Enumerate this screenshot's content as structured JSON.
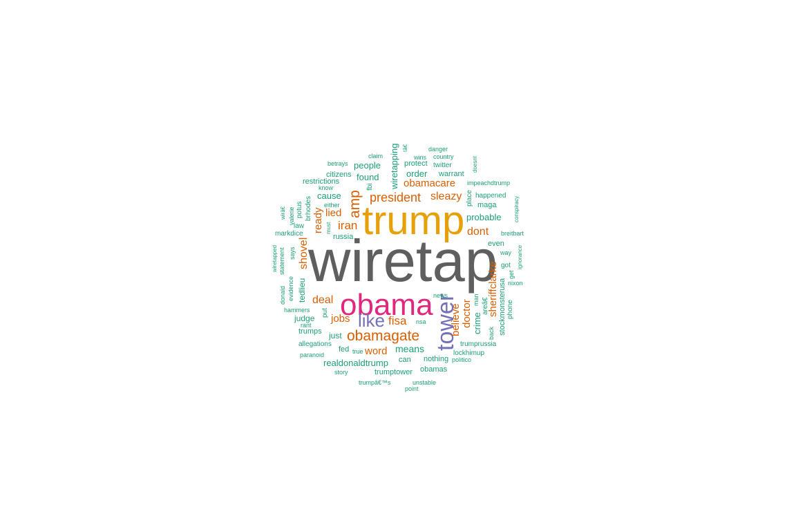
{
  "words": {
    "wiretap": "wiretap",
    "trump": "trump",
    "obama": "obama",
    "tower": "tower",
    "like": "like",
    "obamagate": "obamagate",
    "president": "president",
    "amp": "amp",
    "obamacare": "obamacare",
    "sleazy": "sleazy",
    "iran": "iran",
    "lied": "lied",
    "ready": "ready",
    "shovel": "shovel",
    "dont": "dont",
    "sheriffclarke": "sheriffclarke",
    "believe": "believe",
    "doctor": "doctor",
    "deal": "deal",
    "jobs": "jobs",
    "fisa": "fisa",
    "word": "word",
    "wiretapping": "wiretapping",
    "people": "people",
    "found": "found",
    "order": "order",
    "protect": "protect",
    "cause": "cause",
    "probable": "probable",
    "means": "means",
    "crime": "crime",
    "realdonaldtrump": "realdonaldtrump",
    "trumptower": "trumptower",
    "obamas": "obamas",
    "nothing": "nothing",
    "can": "can",
    "fed": "fed",
    "judge": "judge",
    "tedlieu": "tedlieu",
    "just": "just",
    "trumps": "trumps",
    "russia": "russia",
    "maga": "maga",
    "even": "even",
    "stockmonsterusa": "stockmonsterusa",
    "restrictions": "restrictions",
    "citizens": "citizens",
    "twitter": "twitter",
    "warrant": "warrant",
    "place": "place",
    "happened": "happened",
    "allegations": "allegations",
    "trumprussia": "trumprussia",
    "lockhimup": "lockhimup",
    "politico": "politico",
    "paranoid": "paranoid",
    "story": "story",
    "trumps_possessive": "trumpâ€™s",
    "unstable": "unstable",
    "point": "point",
    "true": "true",
    "nsa": "nsa",
    "news": "news",
    "arewe": "areâ€",
    "man": "man",
    "back": "back",
    "phone": "phone",
    "nixon": "nixon",
    "get": "get",
    "got": "got",
    "ignorance": "ignorance",
    "way": "way",
    "breitbart": "breitbart",
    "conspiracy": "conspiracy",
    "impeachdtrump": "impeachdtrump",
    "doesnt": "doesnt",
    "country": "country",
    "danger": "danger",
    "wins": "wins",
    "claim": "claim",
    "betrays": "betrays",
    "tae": "tâ€",
    "fbi": "fbi",
    "know": "know",
    "either": "either",
    "must": "must",
    "brhodes": "brhodes",
    "potus": "potus",
    "valerie": "valerie",
    "wire": "wirâ€",
    "law": "law",
    "markdice": "markdice",
    "says": "says",
    "statement": "statement",
    "wiretapped": "wiretapped",
    "evidence": "evidence",
    "donald": "donald",
    "hammers": "hammers",
    "rant": "rant",
    "put": "put"
  },
  "colors": {
    "grey": "#5f5f5f",
    "gold": "#e6a00a",
    "pink": "#e0287f",
    "purple": "#7571b6",
    "orange": "#d95f02",
    "teal": "#1b9e77"
  }
}
